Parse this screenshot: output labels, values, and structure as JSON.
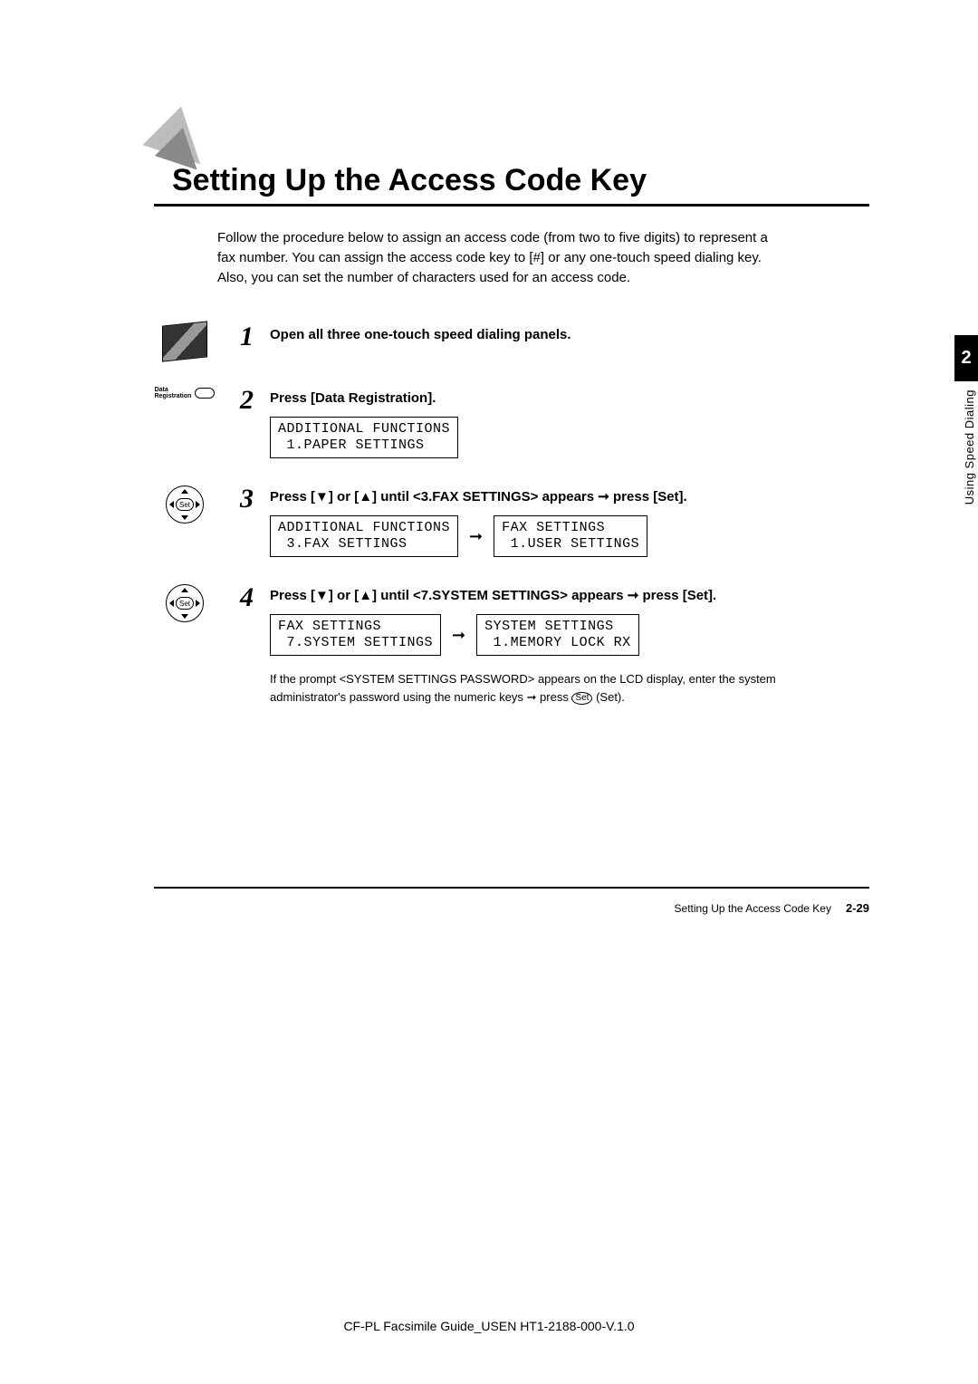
{
  "title": "Setting Up the Access Code Key",
  "intro": "Follow the procedure below to assign an access code (from two to five digits) to represent a fax number. You can assign the access code key to [#] or any one-touch speed dialing key. Also, you can set the number of characters used for an access code.",
  "chapter_tab": "2",
  "side_label": "Using Speed Dialing",
  "steps": {
    "s1": {
      "num": "1",
      "text": "Open all three one-touch speed dialing panels."
    },
    "s2": {
      "num": "2",
      "text": "Press [Data Registration].",
      "btn_label": "Data\nRegistration",
      "lcd1": "ADDITIONAL FUNCTIONS\n 1.PAPER SETTINGS"
    },
    "s3": {
      "num": "3",
      "text": "Press [▼] or [▲] until <3.FAX SETTINGS> appears ➞ press [Set].",
      "lcd1": "ADDITIONAL FUNCTIONS\n 3.FAX SETTINGS",
      "lcd2": "FAX SETTINGS\n 1.USER SETTINGS"
    },
    "s4": {
      "num": "4",
      "text": "Press [▼] or [▲] until <7.SYSTEM SETTINGS> appears ➞ press [Set].",
      "lcd1": "FAX SETTINGS\n 7.SYSTEM SETTINGS",
      "lcd2": "SYSTEM SETTINGS\n 1.MEMORY LOCK RX",
      "note_before": "If the prompt <SYSTEM SETTINGS PASSWORD> appears on the LCD display, enter the system administrator's password using the numeric keys ➞ press ",
      "note_set": "Set",
      "note_after": " (Set)."
    }
  },
  "arrow": "➞",
  "footer": {
    "title": "Setting Up the Access Code Key",
    "page": "2-29"
  },
  "doc_id": "CF-PL Facsimile Guide_USEN HT1-2188-000-V.1.0",
  "colors": {
    "text": "#000000",
    "bg": "#ffffff",
    "tab_bg": "#000000",
    "tab_fg": "#ffffff"
  }
}
